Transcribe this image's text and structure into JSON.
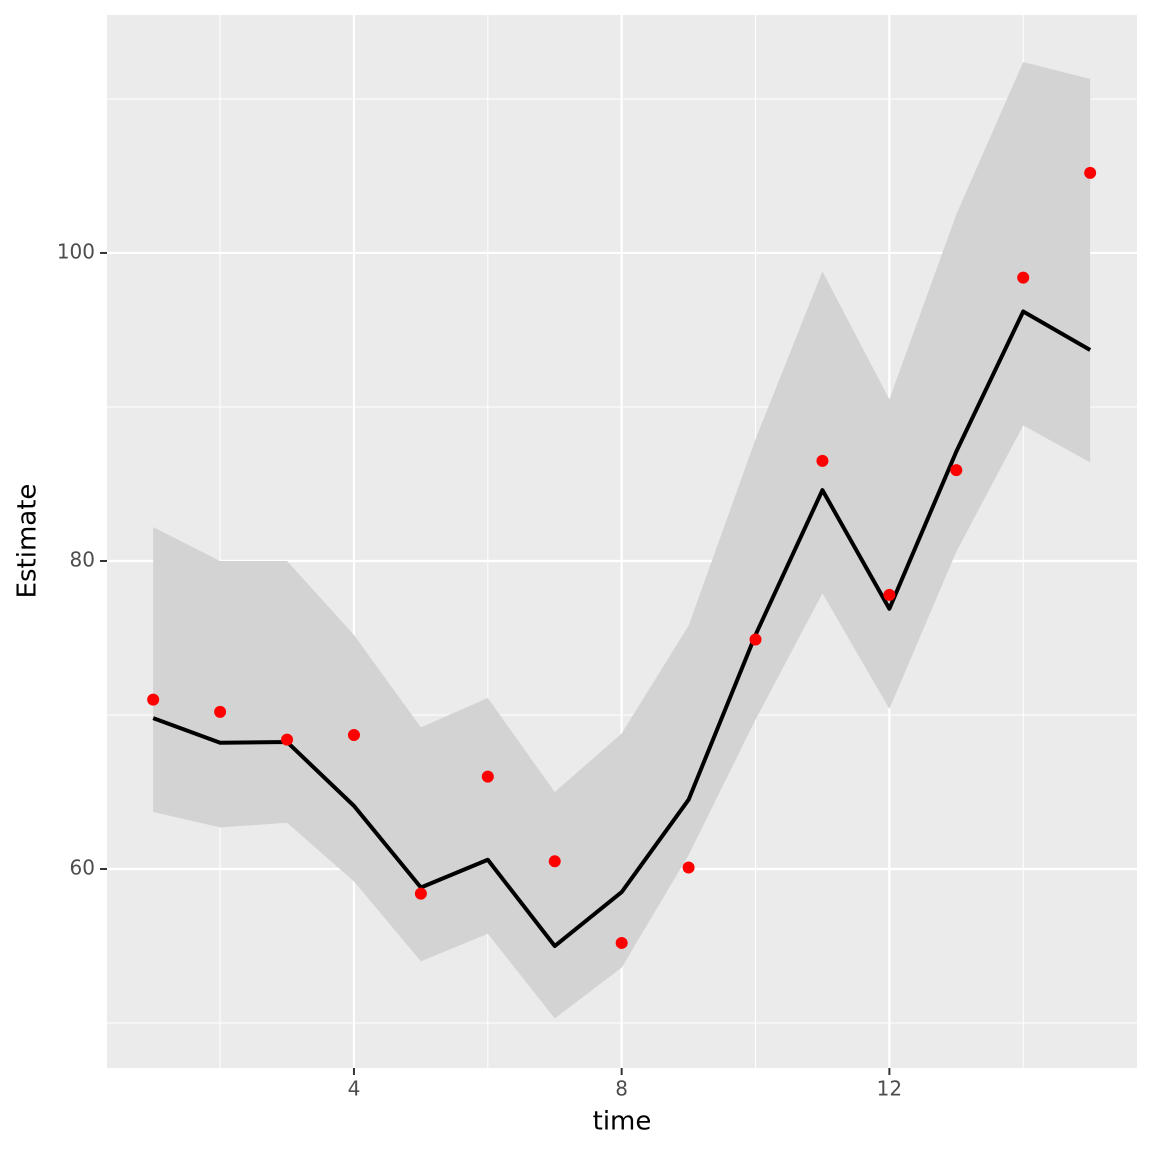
{
  "chart_data": {
    "type": "line",
    "x_label": "time",
    "y_label": "Estimate",
    "x": [
      1,
      2,
      3,
      4,
      5,
      6,
      7,
      8,
      9,
      10,
      11,
      12,
      13,
      14,
      15
    ],
    "series": [
      {
        "color": "#000000",
        "band_color": "#d3d3d3",
        "values": [
          69.8,
          68.2,
          68.25,
          64.1,
          58.8,
          60.6,
          55.0,
          58.5,
          64.5,
          75.2,
          84.6,
          76.9,
          87.1,
          96.2,
          93.7
        ],
        "lower": [
          63.7,
          62.7,
          63.0,
          59.2,
          54.0,
          55.8,
          50.3,
          53.6,
          60.9,
          69.7,
          77.9,
          70.4,
          80.6,
          88.8,
          86.4
        ],
        "upper": [
          82.2,
          80.0,
          80.0,
          75.2,
          69.2,
          71.1,
          65.0,
          68.8,
          75.8,
          87.9,
          98.8,
          90.5,
          102.5,
          112.4,
          111.3
        ]
      }
    ],
    "points": {
      "color": "#ff0000",
      "values": [
        71.0,
        70.2,
        68.4,
        68.7,
        58.4,
        66.0,
        60.5,
        55.2,
        60.1,
        74.9,
        86.5,
        77.8,
        85.9,
        98.4,
        105.2
      ]
    },
    "xlim": [
      0.31,
      15.7
    ],
    "ylim": [
      47.08,
      115.45
    ],
    "xticks": [
      4,
      8,
      12
    ],
    "yticks": [
      60,
      80,
      100
    ],
    "xminor": [
      2,
      6,
      10,
      14
    ],
    "yminor": [
      50,
      70,
      90,
      110
    ],
    "grid": true
  }
}
